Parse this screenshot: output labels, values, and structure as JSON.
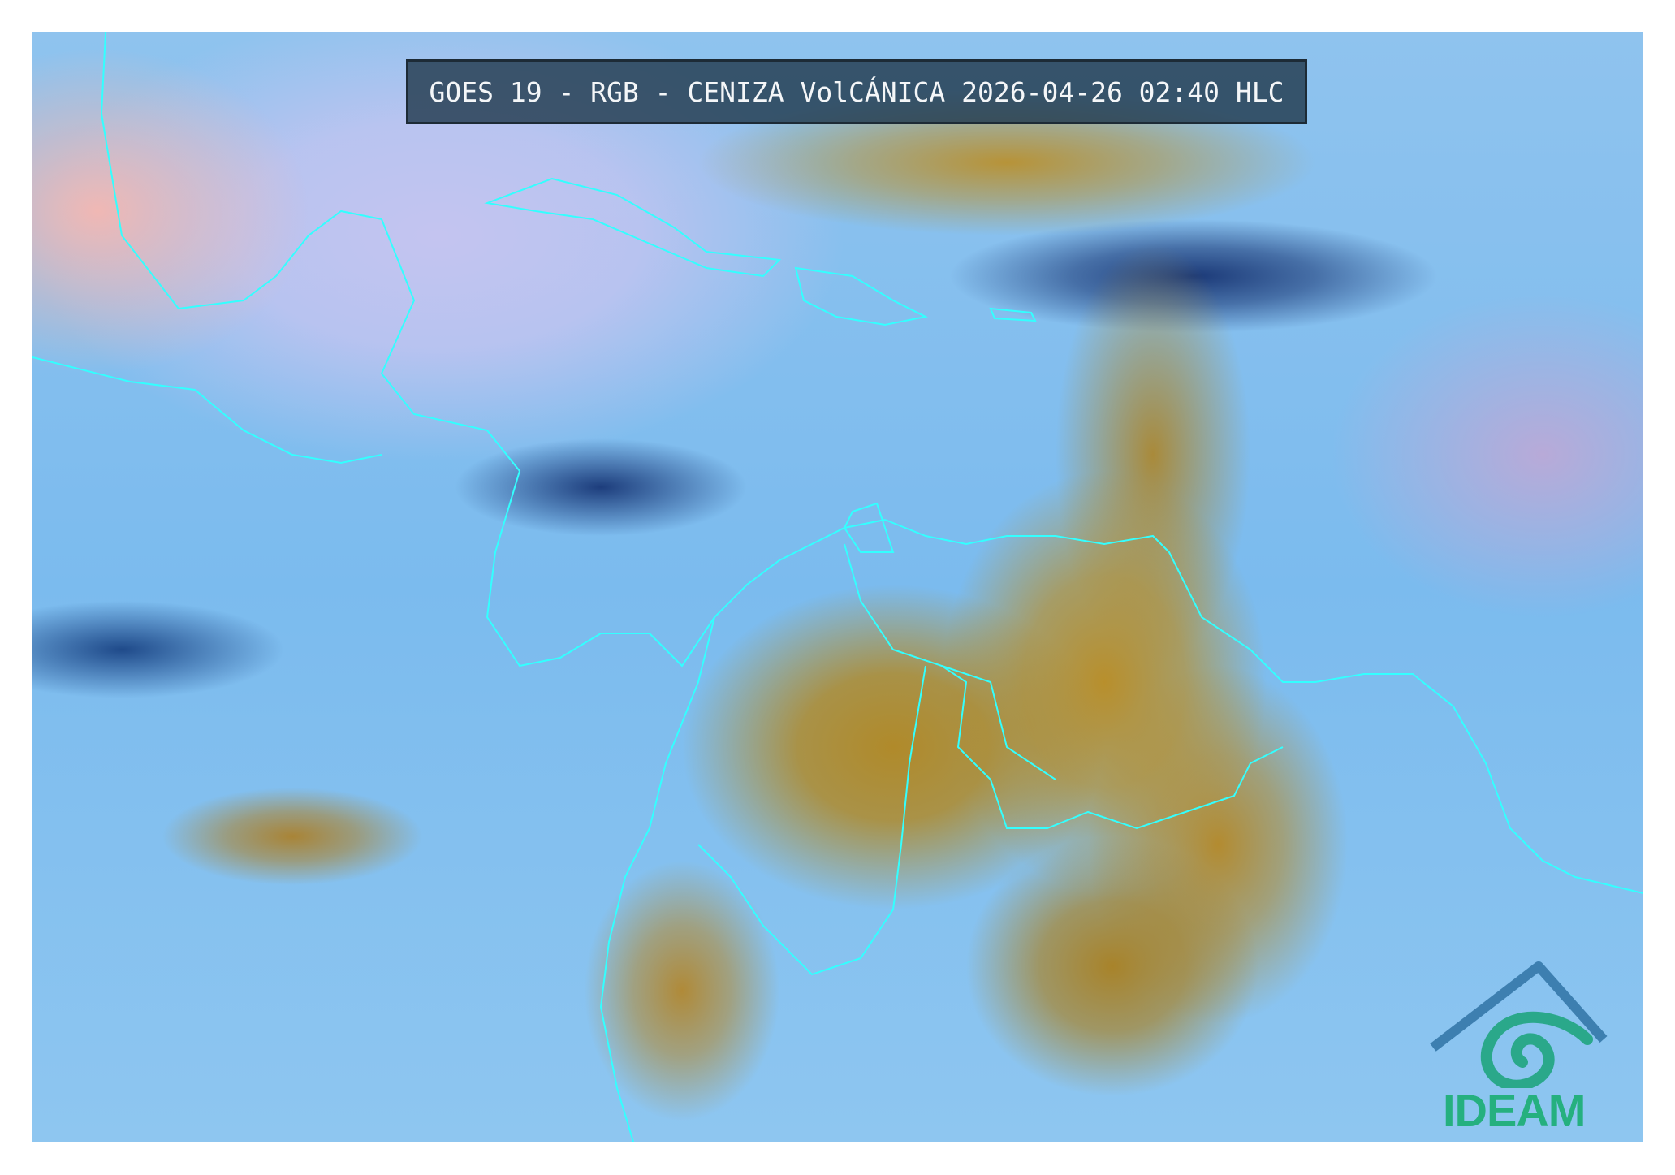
{
  "title": "GOES 19 - RGB - CENIZA VolCÁNICA 2026-04-26 02:40 HLC",
  "logo": {
    "text": "IDEAM",
    "color": "#25b07f"
  },
  "map": {
    "product": "RGB Ceniza Volcánica",
    "colors": {
      "clear_sky": "#7bbbee",
      "thick_cloud": "#b08a2a",
      "high_cloud": "#1c3a78",
      "borders": "#33ffff"
    }
  }
}
